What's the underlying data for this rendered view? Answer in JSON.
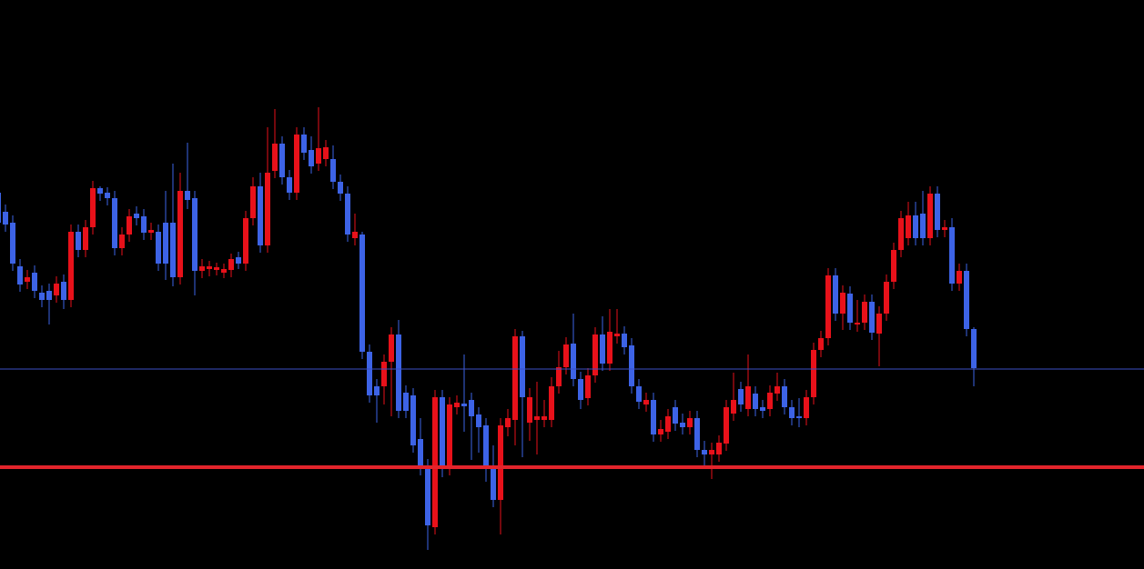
{
  "chart_data": {
    "type": "candlestick",
    "ylim": [
      0,
      626
    ],
    "up_color": "#e8111a",
    "down_color": "#3d63e6",
    "open": [
      414,
      393,
      381,
      333,
      316,
      326,
      304,
      306,
      301,
      316,
      296,
      371,
      351,
      376,
      419,
      414,
      408,
      353,
      368,
      391,
      388,
      370,
      371,
      381,
      381,
      321,
      416,
      408,
      328,
      330,
      329,
      326,
      329,
      343,
      336,
      386,
      421,
      356,
      438,
      468,
      431,
      414,
      478,
      461,
      446,
      451,
      451,
      426,
      413,
      364,
      368,
      239,
      201,
      201,
      228,
      258,
      194,
      191,
      143,
      111,
      46,
      189,
      111,
      178,
      182,
      186,
      170,
      158,
      114,
      76,
      156,
      164,
      256,
      161,
      164,
      164,
      164,
      201,
      222,
      248,
      209,
      188,
      213,
      258,
      226,
      256,
      259,
      246,
      201,
      181,
      186,
      148,
      151,
      178,
      161,
      156,
      166,
      131,
      126,
      126,
      138,
      171,
      198,
      176,
      193,
      178,
      176,
      193,
      201,
      178,
      168,
      166,
      189,
      241,
      254,
      323,
      281,
      303,
      269,
      271,
      294,
      259,
      281,
      316,
      351,
      364,
      389,
      391,
      364,
      413,
      373,
      376,
      314,
      328,
      264
    ],
    "high": [
      424,
      401,
      389,
      341,
      329,
      334,
      312,
      314,
      322,
      324,
      379,
      379,
      384,
      427,
      421,
      420,
      416,
      376,
      396,
      399,
      396,
      381,
      379,
      416,
      446,
      436,
      469,
      416,
      341,
      339,
      337,
      336,
      347,
      349,
      394,
      431,
      436,
      486,
      506,
      476,
      439,
      486,
      486,
      476,
      508,
      472,
      466,
      434,
      421,
      391,
      371,
      247,
      209,
      236,
      266,
      274,
      202,
      199,
      166,
      121,
      197,
      197,
      189,
      191,
      236,
      194,
      178,
      166,
      136,
      166,
      176,
      264,
      262,
      199,
      206,
      186,
      211,
      240,
      255,
      281,
      217,
      221,
      266,
      278,
      286,
      286,
      267,
      254,
      209,
      194,
      194,
      164,
      176,
      186,
      171,
      174,
      174,
      141,
      139,
      147,
      186,
      216,
      206,
      236,
      201,
      186,
      202,
      216,
      209,
      186,
      188,
      197,
      249,
      262,
      331,
      331,
      312,
      311,
      296,
      302,
      302,
      289,
      324,
      359,
      394,
      404,
      404,
      416,
      421,
      421,
      384,
      386,
      336,
      336,
      266
    ],
    "low": [
      371,
      371,
      328,
      305,
      308,
      298,
      288,
      269,
      293,
      286,
      288,
      343,
      343,
      368,
      405,
      400,
      345,
      345,
      360,
      378,
      362,
      362,
      328,
      318,
      311,
      313,
      396,
      301,
      320,
      322,
      323,
      320,
      321,
      330,
      328,
      378,
      348,
      348,
      430,
      423,
      406,
      406,
      450,
      435,
      438,
      443,
      418,
      405,
      360,
      356,
      231,
      183,
      161,
      181,
      168,
      166,
      166,
      128,
      103,
      21,
      38,
      101,
      103,
      170,
      151,
      120,
      128,
      96,
      68,
      38,
      146,
      136,
      123,
      141,
      126,
      156,
      156,
      193,
      214,
      201,
      176,
      180,
      205,
      218,
      218,
      248,
      236,
      193,
      176,
      173,
      140,
      140,
      143,
      152,
      148,
      148,
      123,
      111,
      99,
      118,
      130,
      163,
      173,
      168,
      168,
      166,
      168,
      185,
      170,
      158,
      156,
      158,
      181,
      233,
      246,
      273,
      263,
      263,
      261,
      263,
      252,
      223,
      273,
      308,
      343,
      356,
      356,
      356,
      356,
      365,
      365,
      306,
      306,
      256,
      201
    ],
    "close": [
      381,
      379,
      336,
      313,
      321,
      306,
      296,
      296,
      314,
      296,
      371,
      351,
      376,
      419,
      413,
      408,
      353,
      368,
      388,
      386,
      370,
      373,
      336,
      336,
      321,
      416,
      406,
      328,
      333,
      333,
      332,
      330,
      341,
      336,
      386,
      421,
      356,
      436,
      468,
      431,
      414,
      478,
      458,
      443,
      463,
      464,
      426,
      413,
      368,
      371,
      239,
      191,
      191,
      228,
      258,
      174,
      174,
      136,
      111,
      48,
      189,
      111,
      181,
      183,
      179,
      168,
      156,
      114,
      76,
      158,
      166,
      256,
      189,
      189,
      168,
      168,
      201,
      222,
      247,
      209,
      186,
      213,
      258,
      226,
      261,
      259,
      244,
      201,
      184,
      186,
      148,
      154,
      168,
      160,
      156,
      166,
      131,
      126,
      131,
      139,
      178,
      186,
      181,
      201,
      176,
      174,
      194,
      201,
      178,
      166,
      166,
      189,
      241,
      254,
      323,
      281,
      304,
      271,
      271,
      294,
      260,
      281,
      316,
      351,
      386,
      389,
      364,
      364,
      413,
      373,
      376,
      314,
      328,
      264,
      221
    ],
    "hlines": [
      {
        "value": 220,
        "color": "#3b4fc4"
      },
      {
        "value": 112,
        "color": "#e3242b"
      }
    ]
  }
}
